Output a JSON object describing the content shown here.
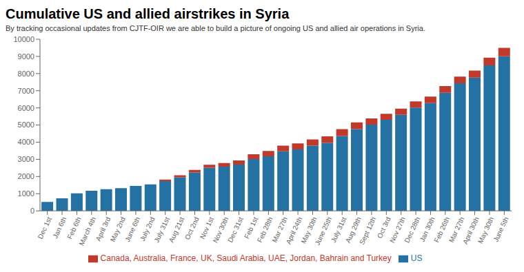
{
  "chart_data": {
    "type": "bar",
    "title": "Cumulative US and allied airstrikes in Syria",
    "subtitle": "By tracking occasional updates from CJTF-OIR we are able to build a picture of ongoing US and allied air operations in Syria.",
    "categories": [
      "Dec 1st",
      "Jan 6th",
      "Feb 6th",
      "March 4th",
      "April 3rd",
      "May 2nd",
      "June 6th",
      "July 2nd",
      "July 31st",
      "Aug 21st",
      "Oct 2nd",
      "Nov 1st",
      "Nov 30th",
      "Dec 31st",
      "Feb 1st",
      "Feb 28th",
      "Mar 27th",
      "April 24th",
      "May 30th",
      "June 25th",
      "July 31st",
      "Aug 29th",
      "Sept 12th",
      "Oct 3rd",
      "Nov 27th",
      "Dec 28th",
      "Jan 30th",
      "Feb 26th",
      "Mar 27th",
      "April 30th",
      "May 30th",
      "June 5th"
    ],
    "series": [
      {
        "name": "US",
        "color": "#2471a3",
        "values": [
          520,
          730,
          1020,
          1170,
          1260,
          1320,
          1450,
          1540,
          1730,
          1950,
          2230,
          2520,
          2580,
          2700,
          3020,
          3180,
          3470,
          3580,
          3800,
          3960,
          4360,
          4760,
          5020,
          5300,
          5600,
          6020,
          6280,
          6880,
          7430,
          7760,
          8470,
          9010
        ]
      },
      {
        "name": "Canada, Australia, France, UK, Saudi Arabia, UAE, Jordan, Bahrain and Turkey",
        "color": "#c0392b",
        "values": [
          0,
          0,
          0,
          0,
          0,
          0,
          0,
          0,
          90,
          120,
          150,
          170,
          210,
          240,
          280,
          310,
          330,
          350,
          360,
          380,
          400,
          390,
          360,
          360,
          360,
          360,
          380,
          390,
          390,
          410,
          460,
          490
        ]
      }
    ],
    "ylim": [
      0,
      10000
    ],
    "yticks": [
      0,
      1000,
      2000,
      3000,
      4000,
      5000,
      6000,
      7000,
      8000,
      9000,
      10000
    ],
    "stacked": true,
    "grid": false,
    "legend": "bottom"
  }
}
